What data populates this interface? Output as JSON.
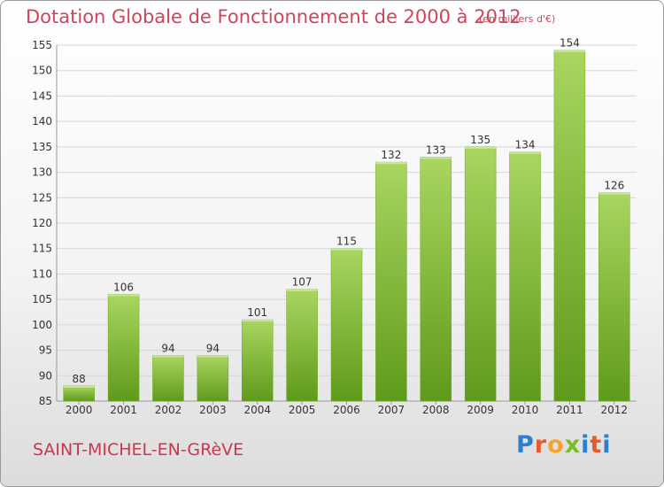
{
  "header": {
    "title": "Dotation Globale de Fonctionnement de 2000 à 2012",
    "subtitle": "(en milliers d'€)"
  },
  "footer": {
    "commune": "SAINT-MICHEL-EN-GRèVE",
    "logo_letters": [
      "P",
      "r",
      "o",
      "x",
      "i",
      "t",
      "i"
    ],
    "logo_colors": [
      "#2f7ecb",
      "#e9592b",
      "#f2a52f",
      "#7bbc2d",
      "#2f7ecb",
      "#e9592b",
      "#2f7ecb"
    ]
  },
  "colors": {
    "title": "#d1445c",
    "bar_light": "#a9d65f",
    "bar_dark": "#5f9a1c",
    "grid": "#d6d6d6"
  },
  "chart_data": {
    "type": "bar",
    "title": "Dotation Globale de Fonctionnement de 2000 à 2012",
    "subtitle": "(en milliers d'€)",
    "xlabel": "",
    "ylabel": "",
    "categories": [
      "2000",
      "2001",
      "2002",
      "2003",
      "2004",
      "2005",
      "2006",
      "2007",
      "2008",
      "2009",
      "2010",
      "2011",
      "2012"
    ],
    "values": [
      88,
      106,
      94,
      94,
      101,
      107,
      115,
      132,
      133,
      135,
      134,
      154,
      126
    ],
    "ylim": [
      85,
      155
    ],
    "yticks": [
      85,
      90,
      95,
      100,
      105,
      110,
      115,
      120,
      125,
      130,
      135,
      140,
      145,
      150,
      155
    ],
    "grid": true,
    "data_labels": true
  }
}
